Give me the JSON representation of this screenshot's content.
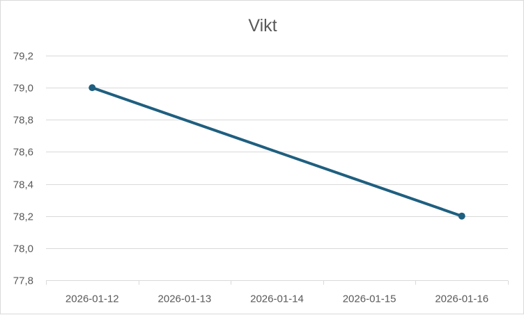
{
  "chart_data": {
    "type": "line",
    "title": "Vikt",
    "xlabel": "",
    "ylabel": "",
    "categories": [
      "2026-01-12",
      "2026-01-13",
      "2026-01-14",
      "2026-01-15",
      "2026-01-16"
    ],
    "series": [
      {
        "values": [
          79.0,
          null,
          null,
          null,
          78.2
        ],
        "color": "#1f5f7f"
      }
    ],
    "ylim": [
      77.8,
      79.2
    ],
    "y_ticks": [
      "77,8",
      "78,0",
      "78,2",
      "78,4",
      "78,6",
      "78,8",
      "79,0",
      "79,2"
    ],
    "y_tick_values": [
      77.8,
      78.0,
      78.2,
      78.4,
      78.6,
      78.8,
      79.0,
      79.2
    ],
    "grid": true,
    "legend": "none",
    "line_connects_gaps": true,
    "markers": true
  }
}
